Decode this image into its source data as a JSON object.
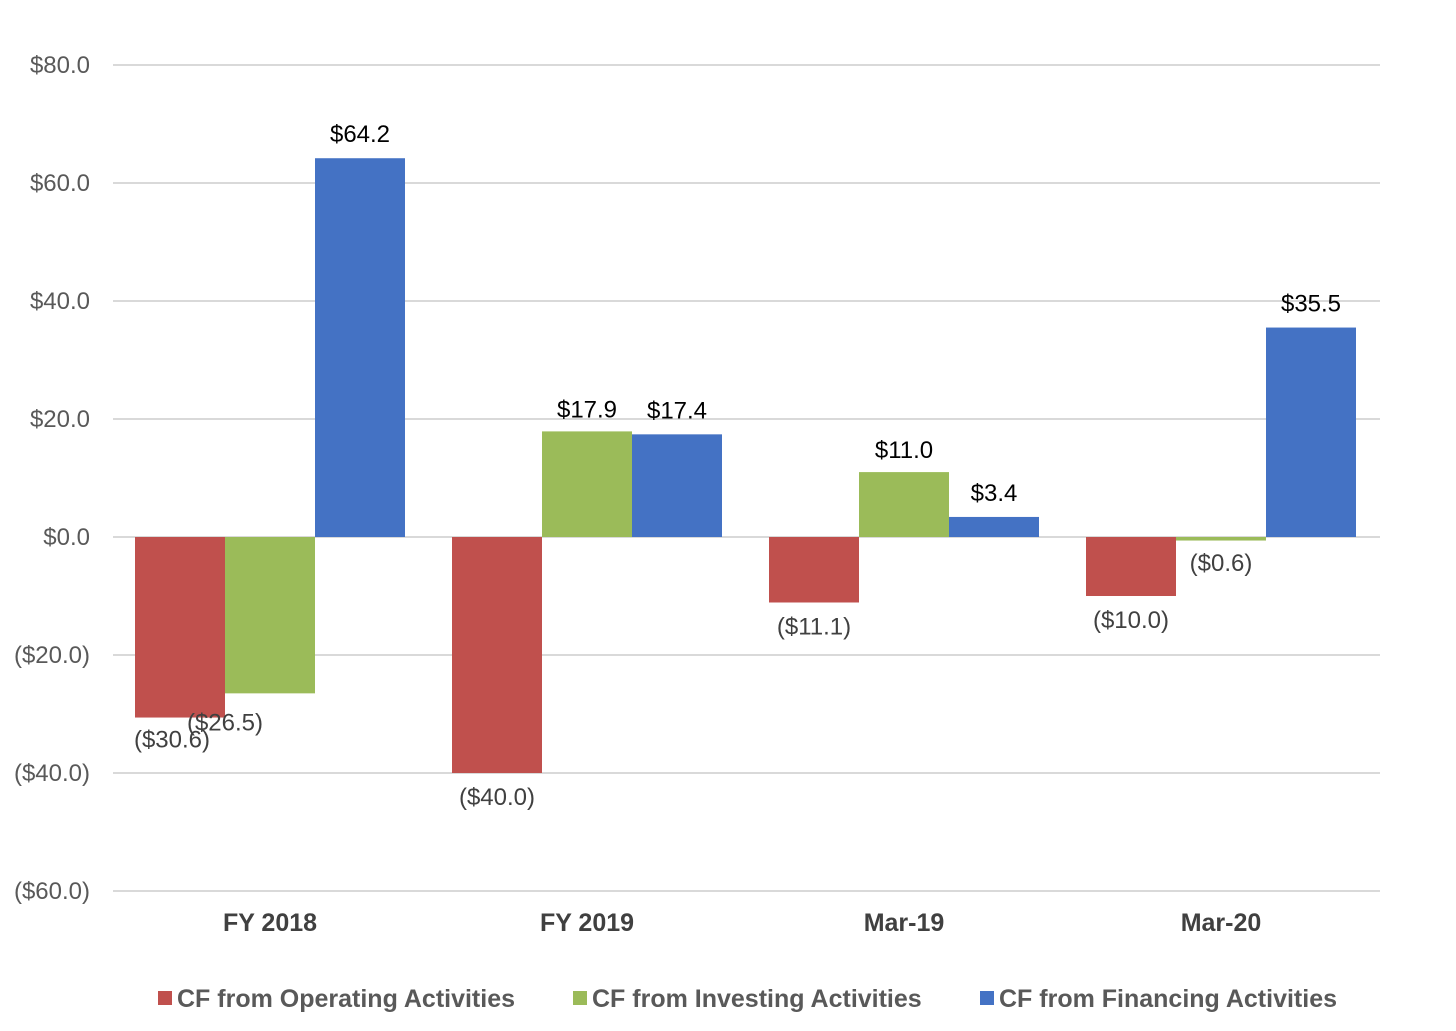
{
  "colors": {
    "operating": "#C0504D",
    "investing": "#9BBB59",
    "financing": "#4472C4",
    "grid": "#D9D9D9",
    "tick_text": "#595959",
    "category_text": "#404040",
    "label_text_neg": "#404040",
    "label_text_pos": "#000000"
  },
  "chart_data": {
    "type": "bar",
    "categories": [
      "FY 2018",
      "FY 2019",
      "Mar-19",
      "Mar-20"
    ],
    "series": [
      {
        "name": "CF from Operating Activities",
        "color_key": "operating",
        "values": [
          -30.6,
          -40.0,
          -11.1,
          -10.0
        ],
        "labels": [
          "($30.6)",
          "($40.0)",
          "($11.1)",
          "($10.0)"
        ]
      },
      {
        "name": "CF from Investing Activities",
        "color_key": "investing",
        "values": [
          -26.5,
          17.9,
          11.0,
          -0.6
        ],
        "labels": [
          "($26.5)",
          "$17.9",
          "$11.0",
          "($0.6)"
        ]
      },
      {
        "name": "CF from Financing Activities",
        "color_key": "financing",
        "values": [
          64.2,
          17.4,
          3.4,
          35.5
        ],
        "labels": [
          "$64.2",
          "$17.4",
          "$3.4",
          "$35.5"
        ]
      }
    ],
    "ylim": [
      -60,
      80
    ],
    "y_ticks": [
      80,
      60,
      40,
      20,
      0,
      -20,
      -40,
      -60
    ],
    "y_tick_labels": [
      "$80.0",
      "$60.0",
      "$40.0",
      "$20.0",
      "$0.0",
      "($20.0)",
      "($40.0)",
      "($60.0)"
    ],
    "title": "",
    "xlabel": "",
    "ylabel": "",
    "grid": true,
    "legend_position": "bottom"
  }
}
